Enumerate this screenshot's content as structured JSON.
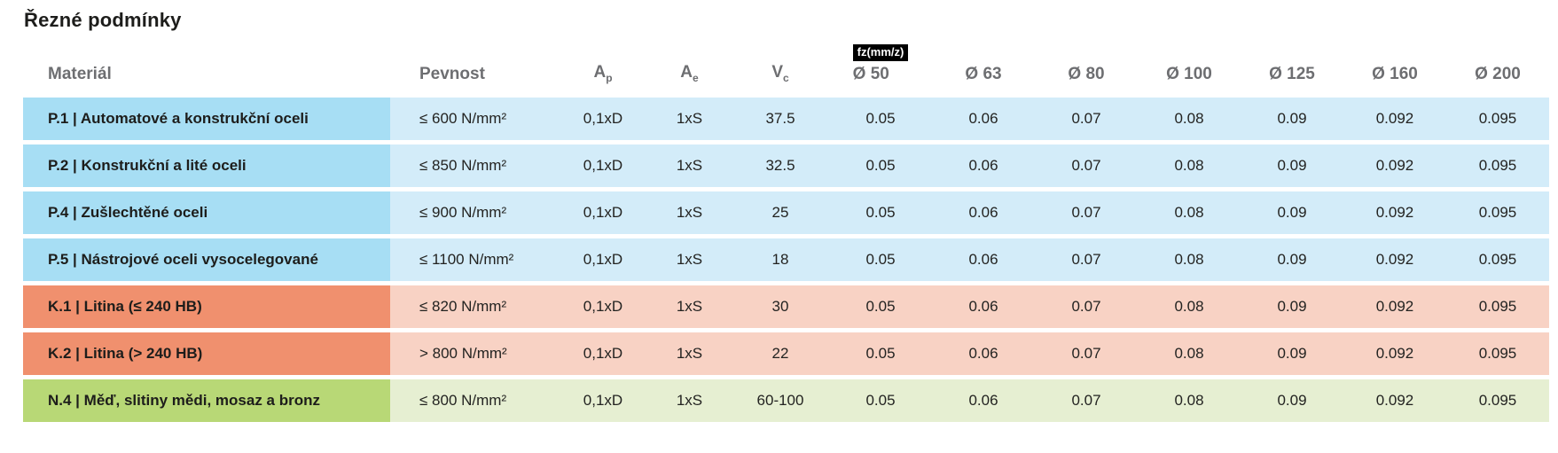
{
  "page_title": "Řezné podmínky",
  "table": {
    "columns": {
      "material": "Materiál",
      "pevnost": "Pevnost",
      "ap": {
        "base": "A",
        "sub": "p"
      },
      "ae": {
        "base": "A",
        "sub": "e"
      },
      "vc": {
        "base": "V",
        "sub": "c"
      },
      "fz_badge": "fz(mm/z)",
      "diameters": [
        "Ø 50",
        "Ø 63",
        "Ø 80",
        "Ø 100",
        "Ø 125",
        "Ø 160",
        "Ø 200"
      ]
    },
    "rows": [
      {
        "label": "P.1 | Automatové a konstrukční oceli",
        "pevnost": "≤ 600 N/mm²",
        "ap": "0,1xD",
        "ae": "1xS",
        "vc": "37.5",
        "fz": [
          "0.05",
          "0.06",
          "0.07",
          "0.08",
          "0.09",
          "0.092",
          "0.095"
        ],
        "theme": "blue"
      },
      {
        "label": "P.2 | Konstrukční a lité oceli",
        "pevnost": "≤ 850 N/mm²",
        "ap": "0,1xD",
        "ae": "1xS",
        "vc": "32.5",
        "fz": [
          "0.05",
          "0.06",
          "0.07",
          "0.08",
          "0.09",
          "0.092",
          "0.095"
        ],
        "theme": "blue"
      },
      {
        "label": "P.4 | Zušlechtěné oceli",
        "pevnost": "≤ 900 N/mm²",
        "ap": "0,1xD",
        "ae": "1xS",
        "vc": "25",
        "fz": [
          "0.05",
          "0.06",
          "0.07",
          "0.08",
          "0.09",
          "0.092",
          "0.095"
        ],
        "theme": "blue"
      },
      {
        "label": "P.5 | Nástrojové oceli vysocelegované",
        "pevnost": "≤ 1100 N/mm²",
        "ap": "0,1xD",
        "ae": "1xS",
        "vc": "18",
        "fz": [
          "0.05",
          "0.06",
          "0.07",
          "0.08",
          "0.09",
          "0.092",
          "0.095"
        ],
        "theme": "blue"
      },
      {
        "label": "K.1 | Litina (≤ 240 HB)",
        "pevnost": "≤ 820 N/mm²",
        "ap": "0,1xD",
        "ae": "1xS",
        "vc": "30",
        "fz": [
          "0.05",
          "0.06",
          "0.07",
          "0.08",
          "0.09",
          "0.092",
          "0.095"
        ],
        "theme": "salmon"
      },
      {
        "label": "K.2 | Litina (> 240 HB)",
        "pevnost": "> 800 N/mm²",
        "ap": "0,1xD",
        "ae": "1xS",
        "vc": "22",
        "fz": [
          "0.05",
          "0.06",
          "0.07",
          "0.08",
          "0.09",
          "0.092",
          "0.095"
        ],
        "theme": "salmon"
      },
      {
        "label": "N.4 | Měď, slitiny mědi, mosaz a bronz",
        "pevnost": "≤ 800 N/mm²",
        "ap": "0,1xD",
        "ae": "1xS",
        "vc": "60-100",
        "fz": [
          "0.05",
          "0.06",
          "0.07",
          "0.08",
          "0.09",
          "0.092",
          "0.095"
        ],
        "theme": "green"
      }
    ],
    "colors": {
      "blue_dark": "#a7def4",
      "blue_light": "#d3ecf9",
      "salmon_dark": "#f0906e",
      "salmon_light": "#f8d2c4",
      "green_dark": "#b8d876",
      "green_light": "#e6efd2",
      "header_text": "#6d6e71",
      "body_text": "#1d1d1b",
      "badge_bg": "#000000",
      "badge_text": "#ffffff"
    }
  }
}
